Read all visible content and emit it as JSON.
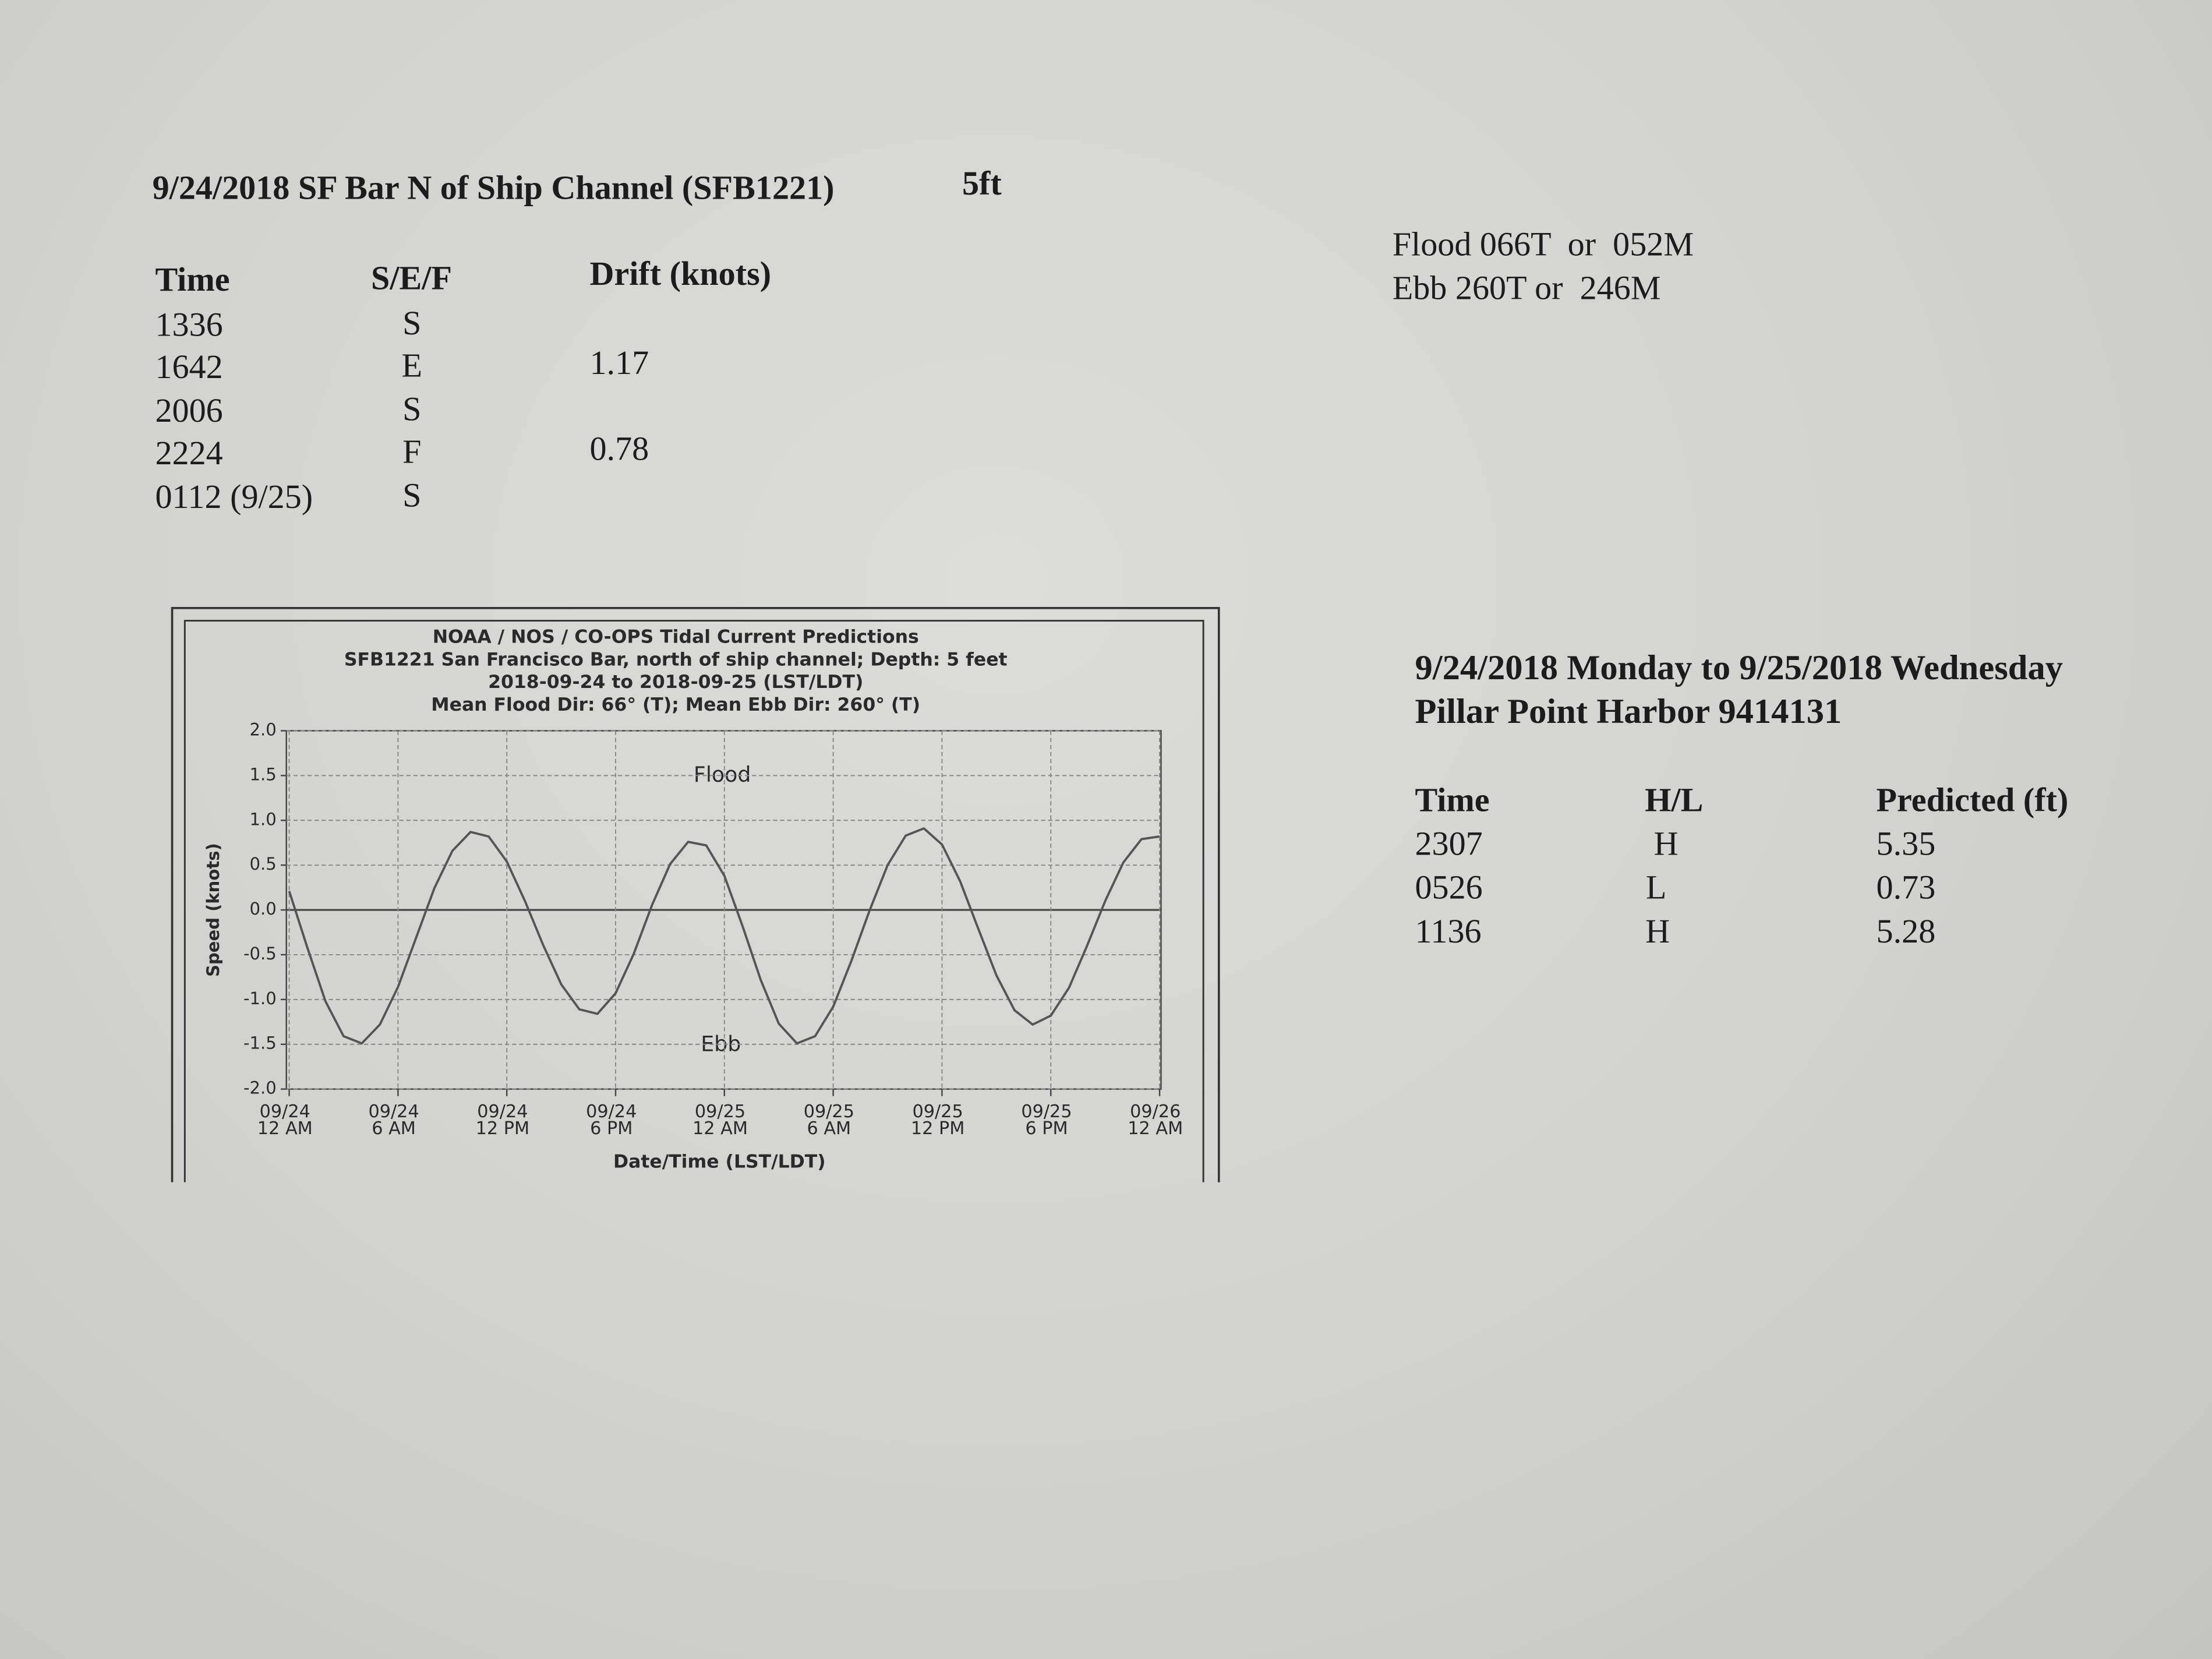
{
  "header": {
    "title": "9/24/2018 SF Bar N of Ship Channel (SFB1221)",
    "depth": "5ft"
  },
  "directions": [
    "Flood 066T  or  052M",
    "Ebb 260T or  246M"
  ],
  "current_table": {
    "columns": [
      "Time",
      "S/E/F",
      "Drift (knots)"
    ],
    "rows": [
      [
        "1336",
        "S"
      ],
      [
        "1642",
        "E",
        "1.17"
      ],
      [
        "2006",
        "S"
      ],
      [
        "2224",
        "F",
        "0.78"
      ],
      [
        "0112 (9/25)",
        "S"
      ]
    ]
  },
  "tide": {
    "title": "9/24/2018 Monday to 9/25/2018 Wednesday",
    "station": "Pillar Point Harbor 9414131",
    "columns": [
      "Time",
      "H/L",
      "Predicted (ft)"
    ],
    "rows": [
      [
        "2307",
        "H",
        "5.35"
      ],
      [
        "0526",
        "L",
        "0.73"
      ],
      [
        "1136",
        "H",
        "5.28"
      ]
    ]
  },
  "chart_data": {
    "type": "line",
    "title": "NOAA / NOS / CO-OPS Tidal Current Predictions",
    "subtitle": [
      "SFB1221 San Francisco Bar, north of ship channel;  Depth: 5 feet",
      "2018-09-24 to 2018-09-25 (LST/LDT)",
      "Mean Flood Dir: 66° (T);  Mean Ebb Dir: 260° (T)"
    ],
    "ylabel": "Speed (knots)",
    "xlabel": "Date/Time (LST/LDT)",
    "annotations": [
      "Flood",
      "Ebb"
    ],
    "color": "#555555",
    "grid": true,
    "x": [
      0,
      1,
      2,
      3,
      4,
      5,
      6,
      7,
      8,
      9,
      10,
      11,
      12,
      13,
      14,
      15,
      16,
      17,
      18,
      19,
      20,
      21,
      22,
      23,
      24,
      25,
      26,
      27,
      28,
      29,
      30,
      31,
      32,
      33,
      34,
      35,
      36,
      37,
      38,
      39,
      40,
      41,
      42,
      43,
      44,
      45,
      46,
      47,
      48
    ],
    "values": [
      0.21,
      -0.42,
      -1.02,
      -1.41,
      -1.49,
      -1.28,
      -0.86,
      -0.31,
      0.24,
      0.66,
      0.87,
      0.82,
      0.54,
      0.1,
      -0.39,
      -0.83,
      -1.11,
      -1.16,
      -0.93,
      -0.49,
      0.05,
      0.51,
      0.76,
      0.72,
      0.38,
      -0.18,
      -0.78,
      -1.27,
      -1.49,
      -1.41,
      -1.08,
      -0.57,
      -0.01,
      0.5,
      0.83,
      0.91,
      0.73,
      0.32,
      -0.21,
      -0.73,
      -1.12,
      -1.28,
      -1.18,
      -0.87,
      -0.4,
      0.1,
      0.53,
      0.79,
      0.82
    ],
    "xlim": [
      0,
      48
    ],
    "xticks": [
      {
        "value": 0,
        "label": "09/24 12 AM"
      },
      {
        "value": 6,
        "label": "09/24 6 AM"
      },
      {
        "value": 12,
        "label": "09/24 12 PM"
      },
      {
        "value": 18,
        "label": "09/24 6 PM"
      },
      {
        "value": 24,
        "label": "09/25 12 AM"
      },
      {
        "value": 30,
        "label": "09/25 6 AM"
      },
      {
        "value": 36,
        "label": "09/25 12 PM"
      },
      {
        "value": 42,
        "label": "09/25 6 PM"
      },
      {
        "value": 48,
        "label": "09/26 12 AM"
      }
    ],
    "ylim": [
      -2,
      2
    ],
    "yticks": [
      {
        "value": 2,
        "label": "2.0"
      },
      1.5,
      {
        "value": 1,
        "label": "1.0"
      },
      0.5,
      {
        "value": 0,
        "label": "0.0"
      },
      -0.5,
      {
        "value": -1,
        "label": "-1.0"
      },
      -1.5,
      {
        "value": -2,
        "label": "-2.0"
      }
    ]
  }
}
